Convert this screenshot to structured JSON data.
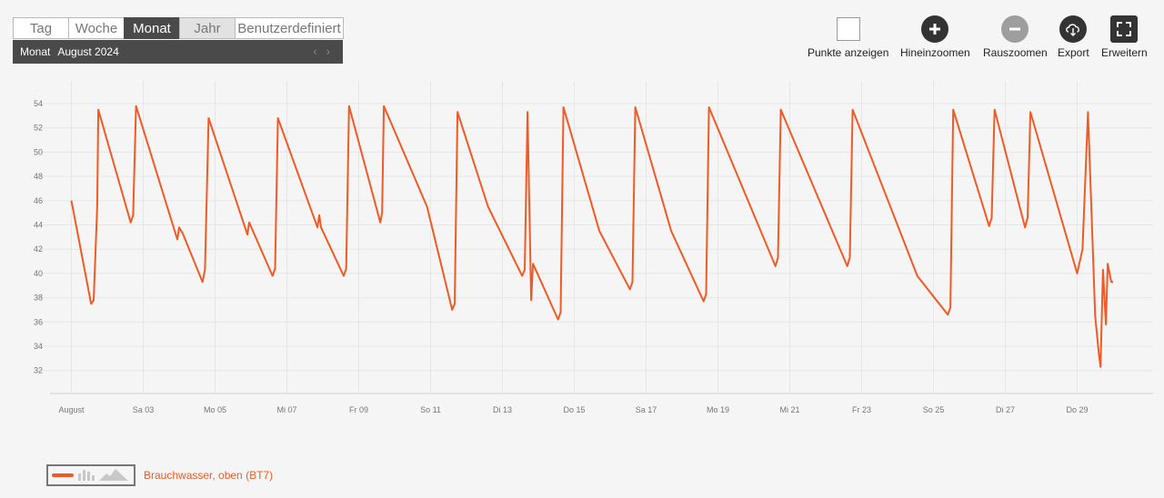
{
  "period_tabs": [
    {
      "label": "Tag",
      "state": "normal"
    },
    {
      "label": "Woche",
      "state": "normal"
    },
    {
      "label": "Monat",
      "state": "active"
    },
    {
      "label": "Jahr",
      "state": "hover"
    },
    {
      "label": "Benutzerdefiniert",
      "state": "normal"
    }
  ],
  "period_bar": {
    "label": "Monat",
    "value": "August 2024",
    "prev_icon": "chevron-left-icon",
    "next_icon": "chevron-right-icon"
  },
  "toolbar": {
    "show_points": {
      "label": "Punkte anzeigen",
      "icon": "checkbox-icon"
    },
    "zoom_in": {
      "label": "Hineinzoomen",
      "icon": "plus-circle-icon"
    },
    "zoom_out": {
      "label": "Rauszoomen",
      "icon": "minus-circle-icon"
    },
    "export": {
      "label": "Export",
      "icon": "cloud-download-icon"
    },
    "expand": {
      "label": "Erweitern",
      "icon": "fullscreen-icon"
    }
  },
  "colors": {
    "series": "#f15a24",
    "grid": "#e6e6e6",
    "axis_text": "#777777",
    "tab_active": "#4a4a4a",
    "icon_dark": "#333333",
    "icon_disabled": "#9e9e9e"
  },
  "chart_data": {
    "type": "line",
    "title": "",
    "xlabel": "",
    "ylabel": "",
    "ylim": [
      30,
      55
    ],
    "y_ticks": [
      32,
      34,
      36,
      38,
      40,
      42,
      44,
      46,
      48,
      50,
      52,
      54
    ],
    "x_domain": [
      "2024-08-01",
      "2024-08-31"
    ],
    "x_ticks": [
      {
        "day": 1,
        "label": "August"
      },
      {
        "day": 3,
        "label": "Sa 03"
      },
      {
        "day": 5,
        "label": "Mo 05"
      },
      {
        "day": 7,
        "label": "Mi 07"
      },
      {
        "day": 9,
        "label": "Fr 09"
      },
      {
        "day": 11,
        "label": "So 11"
      },
      {
        "day": 13,
        "label": "Di 13"
      },
      {
        "day": 15,
        "label": "Do 15"
      },
      {
        "day": 17,
        "label": "Sa 17"
      },
      {
        "day": 19,
        "label": "Mo 19"
      },
      {
        "day": 21,
        "label": "Mi 21"
      },
      {
        "day": 23,
        "label": "Fr 23"
      },
      {
        "day": 25,
        "label": "So 25"
      },
      {
        "day": 27,
        "label": "Di 27"
      },
      {
        "day": 29,
        "label": "Do 29"
      }
    ],
    "grid": true,
    "legend_position": "bottom-left",
    "series": [
      {
        "name": "Brauchwasser, oben (BT7)",
        "color": "#f15a24",
        "points": [
          [
            1.0,
            46.0
          ],
          [
            1.55,
            37.5
          ],
          [
            1.62,
            37.8
          ],
          [
            1.72,
            45.5
          ],
          [
            1.75,
            53.5
          ],
          [
            2.65,
            44.2
          ],
          [
            2.72,
            44.8
          ],
          [
            2.8,
            53.8
          ],
          [
            3.95,
            42.8
          ],
          [
            4.0,
            43.8
          ],
          [
            4.1,
            43.3
          ],
          [
            4.65,
            39.3
          ],
          [
            4.72,
            40.3
          ],
          [
            4.82,
            52.8
          ],
          [
            5.9,
            43.2
          ],
          [
            5.95,
            44.2
          ],
          [
            6.6,
            39.8
          ],
          [
            6.67,
            40.4
          ],
          [
            6.75,
            52.8
          ],
          [
            7.85,
            43.8
          ],
          [
            7.9,
            44.8
          ],
          [
            7.95,
            43.8
          ],
          [
            8.58,
            39.8
          ],
          [
            8.65,
            40.4
          ],
          [
            8.73,
            53.8
          ],
          [
            9.6,
            44.2
          ],
          [
            9.65,
            45.0
          ],
          [
            9.7,
            53.8
          ],
          [
            10.9,
            45.5
          ],
          [
            11.6,
            37.0
          ],
          [
            11.67,
            37.5
          ],
          [
            11.75,
            53.3
          ],
          [
            12.6,
            45.5
          ],
          [
            13.55,
            39.8
          ],
          [
            13.62,
            40.3
          ],
          [
            13.7,
            53.3
          ],
          [
            13.8,
            37.8
          ],
          [
            13.85,
            40.8
          ],
          [
            14.55,
            36.2
          ],
          [
            14.62,
            36.8
          ],
          [
            14.7,
            53.7
          ],
          [
            15.7,
            43.5
          ],
          [
            16.55,
            38.7
          ],
          [
            16.62,
            39.3
          ],
          [
            16.7,
            53.7
          ],
          [
            17.7,
            43.5
          ],
          [
            18.6,
            37.7
          ],
          [
            18.67,
            38.3
          ],
          [
            18.75,
            53.7
          ],
          [
            20.6,
            40.6
          ],
          [
            20.67,
            41.3
          ],
          [
            20.75,
            53.5
          ],
          [
            22.6,
            40.6
          ],
          [
            22.67,
            41.3
          ],
          [
            22.75,
            53.5
          ],
          [
            24.55,
            39.8
          ],
          [
            25.4,
            36.6
          ],
          [
            25.47,
            37.2
          ],
          [
            25.55,
            53.5
          ],
          [
            26.55,
            43.9
          ],
          [
            26.62,
            44.6
          ],
          [
            26.7,
            53.5
          ],
          [
            27.55,
            43.8
          ],
          [
            27.62,
            44.6
          ],
          [
            27.7,
            53.3
          ],
          [
            29.0,
            40.0
          ],
          [
            29.15,
            42.0
          ],
          [
            29.3,
            53.3
          ],
          [
            29.5,
            36.5
          ],
          [
            29.6,
            33.5
          ],
          [
            29.65,
            32.3
          ],
          [
            29.72,
            40.3
          ],
          [
            29.8,
            35.8
          ],
          [
            29.85,
            40.8
          ],
          [
            29.95,
            39.3
          ],
          [
            30.0,
            39.3
          ]
        ]
      }
    ]
  },
  "legend": [
    {
      "label": "Brauchwasser, oben (BT7)",
      "color": "#f15a24",
      "swatch_icon": "chart-type-icon"
    }
  ]
}
